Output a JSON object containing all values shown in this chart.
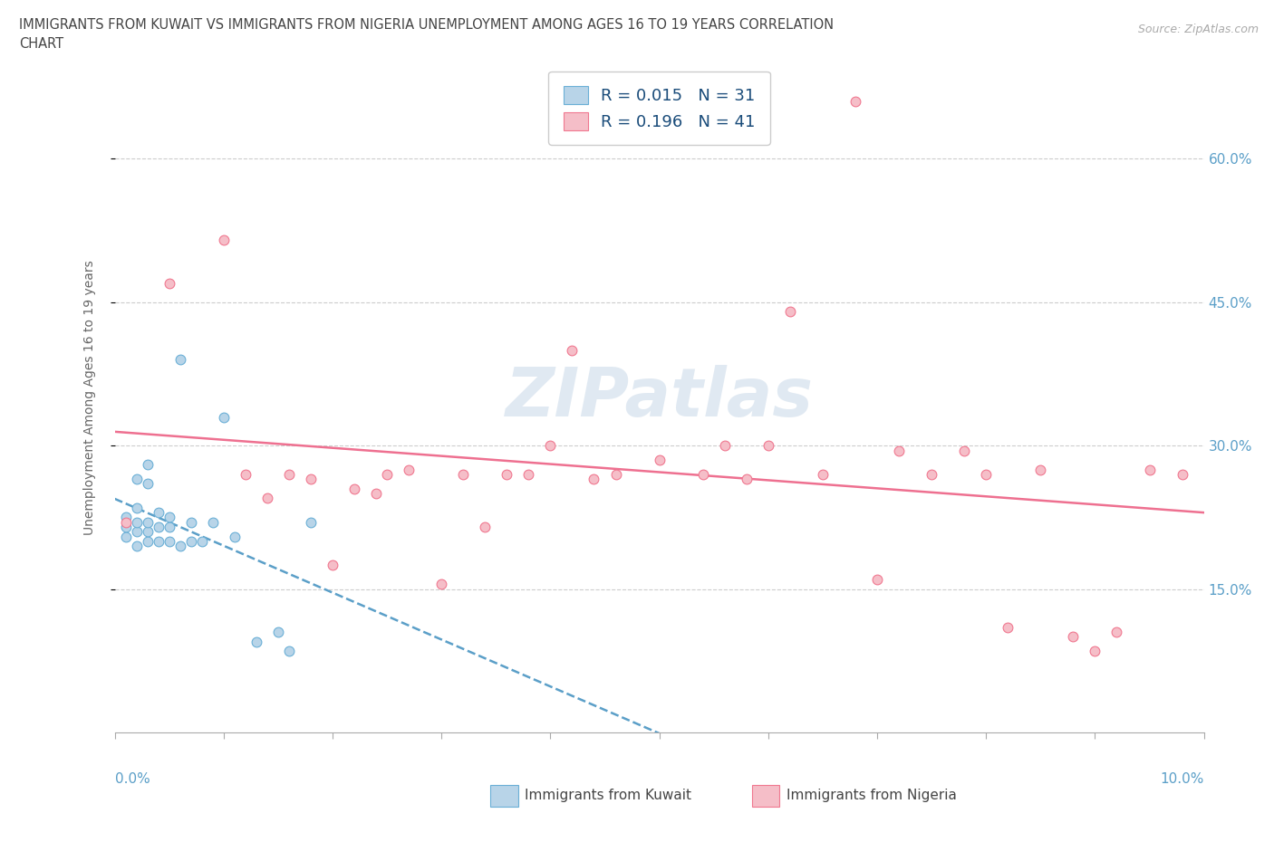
{
  "title_line1": "IMMIGRANTS FROM KUWAIT VS IMMIGRANTS FROM NIGERIA UNEMPLOYMENT AMONG AGES 16 TO 19 YEARS CORRELATION",
  "title_line2": "CHART",
  "source_text": "Source: ZipAtlas.com",
  "ylabel": "Unemployment Among Ages 16 to 19 years",
  "xlim": [
    0.0,
    0.1
  ],
  "ylim": [
    0.0,
    0.7
  ],
  "yticks": [
    0.15,
    0.3,
    0.45,
    0.6
  ],
  "ytick_labels": [
    "15.0%",
    "30.0%",
    "45.0%",
    "60.0%"
  ],
  "xtick_labels_left": "0.0%",
  "xtick_labels_right": "10.0%",
  "kuwait_dot_color": "#b8d4e8",
  "kuwait_edge_color": "#6aafd6",
  "nigeria_dot_color": "#f5bec8",
  "nigeria_edge_color": "#f07890",
  "kuwait_line_color": "#5b9fc8",
  "nigeria_line_color": "#ee7090",
  "kuwait_R": 0.015,
  "kuwait_N": 31,
  "nigeria_R": 0.196,
  "nigeria_N": 41,
  "legend_color": "#1a4c7a",
  "watermark": "ZIPatlas",
  "kuwait_x": [
    0.001,
    0.001,
    0.001,
    0.002,
    0.002,
    0.002,
    0.002,
    0.002,
    0.003,
    0.003,
    0.003,
    0.003,
    0.003,
    0.004,
    0.004,
    0.004,
    0.005,
    0.005,
    0.005,
    0.006,
    0.006,
    0.007,
    0.007,
    0.008,
    0.009,
    0.01,
    0.011,
    0.013,
    0.015,
    0.016,
    0.018
  ],
  "kuwait_y": [
    0.205,
    0.215,
    0.225,
    0.195,
    0.21,
    0.22,
    0.235,
    0.265,
    0.2,
    0.21,
    0.22,
    0.26,
    0.28,
    0.2,
    0.215,
    0.23,
    0.2,
    0.215,
    0.225,
    0.195,
    0.39,
    0.2,
    0.22,
    0.2,
    0.22,
    0.33,
    0.205,
    0.095,
    0.105,
    0.085,
    0.22
  ],
  "nigeria_x": [
    0.001,
    0.005,
    0.01,
    0.012,
    0.014,
    0.016,
    0.018,
    0.02,
    0.022,
    0.024,
    0.025,
    0.027,
    0.03,
    0.032,
    0.034,
    0.036,
    0.038,
    0.04,
    0.042,
    0.044,
    0.046,
    0.05,
    0.054,
    0.056,
    0.058,
    0.06,
    0.062,
    0.065,
    0.068,
    0.07,
    0.072,
    0.075,
    0.078,
    0.08,
    0.082,
    0.085,
    0.088,
    0.09,
    0.092,
    0.095,
    0.098
  ],
  "nigeria_y": [
    0.22,
    0.47,
    0.515,
    0.27,
    0.245,
    0.27,
    0.265,
    0.175,
    0.255,
    0.25,
    0.27,
    0.275,
    0.155,
    0.27,
    0.215,
    0.27,
    0.27,
    0.3,
    0.4,
    0.265,
    0.27,
    0.285,
    0.27,
    0.3,
    0.265,
    0.3,
    0.44,
    0.27,
    0.66,
    0.16,
    0.295,
    0.27,
    0.295,
    0.27,
    0.11,
    0.275,
    0.1,
    0.085,
    0.105,
    0.275,
    0.27
  ]
}
